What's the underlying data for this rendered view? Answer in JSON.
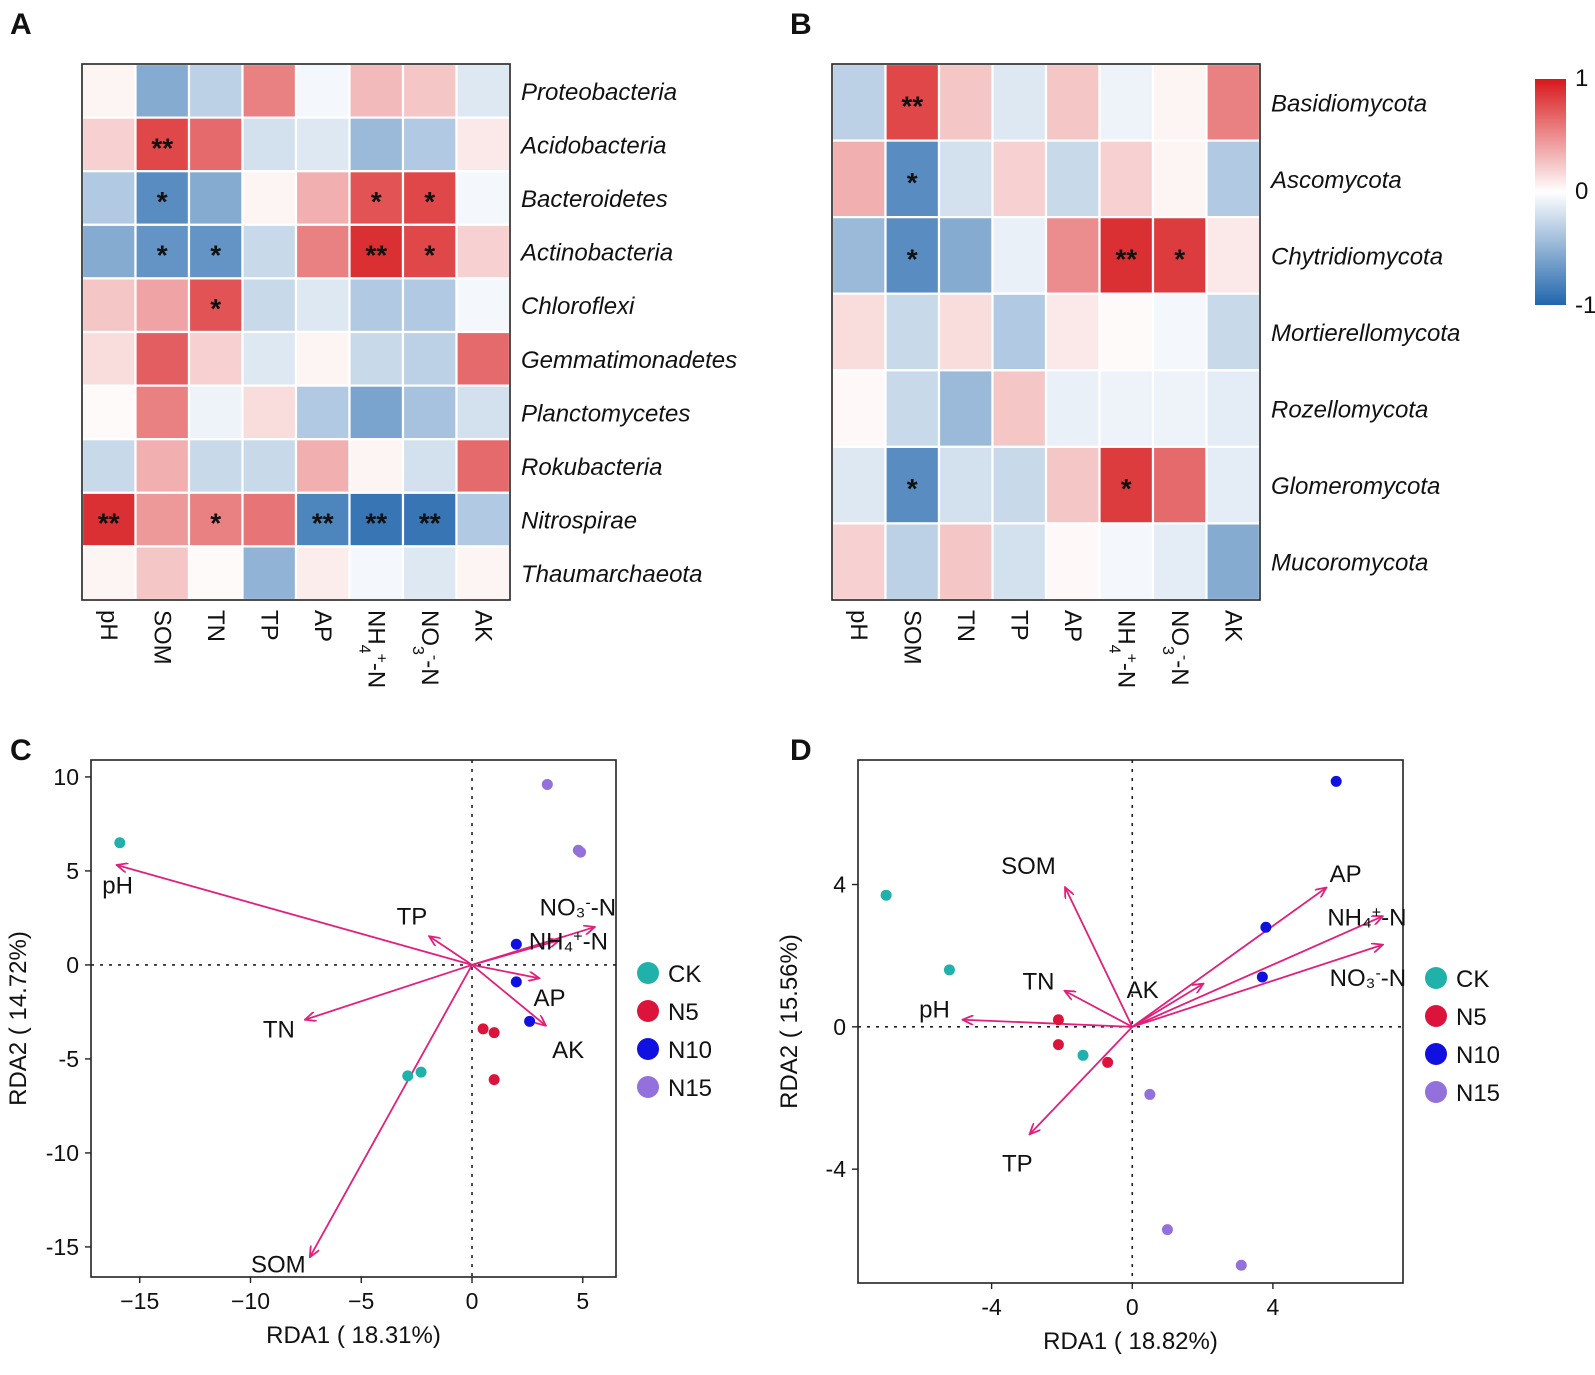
{
  "panels": [
    "A",
    "B",
    "C",
    "D"
  ],
  "colorbar": {
    "max_label": "1",
    "mid_label": "0",
    "min_label": "-1",
    "high_color": "#d7191c",
    "mid_color": "#ffffff",
    "low_color": "#2166ac"
  },
  "chart_data": [
    {
      "type": "heatmap",
      "panel": "A",
      "title": "",
      "columns": [
        "pH",
        "SOM",
        "TN",
        "TP",
        "AP",
        "NH4+-N",
        "NO3--N",
        "AK"
      ],
      "rows": [
        "Proteobacteria",
        "Acidobacteria",
        "Bacteroidetes",
        "Actinobacteria",
        "Chloroflexi",
        "Gemmatimonadetes",
        "Planctomycetes",
        "Rokubacteria",
        "Nitrospirae",
        "Thaumarchaeota"
      ],
      "values": [
        [
          0.05,
          -0.55,
          -0.3,
          0.55,
          -0.05,
          0.3,
          0.25,
          -0.15
        ],
        [
          0.2,
          0.8,
          0.65,
          -0.2,
          -0.15,
          -0.45,
          -0.35,
          0.1
        ],
        [
          -0.35,
          -0.75,
          -0.55,
          0.05,
          0.35,
          0.75,
          0.8,
          -0.05
        ],
        [
          -0.55,
          -0.7,
          -0.7,
          -0.25,
          0.55,
          0.9,
          0.8,
          0.2
        ],
        [
          0.25,
          0.4,
          0.75,
          -0.25,
          -0.15,
          -0.35,
          -0.35,
          -0.05
        ],
        [
          0.15,
          0.7,
          0.2,
          -0.15,
          0.05,
          -0.25,
          -0.3,
          0.65
        ],
        [
          0.02,
          0.55,
          -0.08,
          0.15,
          -0.35,
          -0.6,
          -0.4,
          -0.2
        ],
        [
          -0.25,
          0.35,
          -0.25,
          -0.25,
          0.35,
          0.05,
          -0.2,
          0.65
        ],
        [
          0.9,
          0.45,
          0.55,
          0.6,
          -0.8,
          -0.9,
          -0.9,
          -0.35
        ],
        [
          0.05,
          0.25,
          0.02,
          -0.5,
          0.08,
          -0.05,
          -0.15,
          0.05
        ]
      ],
      "significance": [
        [
          "",
          "",
          "",
          "",
          "",
          "",
          "",
          ""
        ],
        [
          "",
          "**",
          "",
          "",
          "",
          "",
          "",
          ""
        ],
        [
          "",
          "*",
          "",
          "",
          "",
          "*",
          "*",
          ""
        ],
        [
          "",
          "*",
          "*",
          "",
          "",
          "**",
          "*",
          ""
        ],
        [
          "",
          "",
          "*",
          "",
          "",
          "",
          "",
          ""
        ],
        [
          "",
          "",
          "",
          "",
          "",
          "",
          "",
          ""
        ],
        [
          "",
          "",
          "",
          "",
          "",
          "",
          "",
          ""
        ],
        [
          "",
          "",
          "",
          "",
          "",
          "",
          "",
          ""
        ],
        [
          "**",
          "",
          "*",
          "",
          "**",
          "**",
          "**",
          ""
        ],
        [
          "",
          "",
          "",
          "",
          "",
          "",
          "",
          ""
        ]
      ],
      "zlim": [
        -1,
        1
      ]
    },
    {
      "type": "heatmap",
      "panel": "B",
      "title": "",
      "columns": [
        "pH",
        "SOM",
        "TN",
        "TP",
        "AP",
        "NH4+-N",
        "NO3--N",
        "AK"
      ],
      "rows": [
        "Basidiomycota",
        "Ascomycota",
        "Chytridiomycota",
        "Mortierellomycota",
        "Rozellomycota",
        "Glomeromycota",
        "Mucoromycota"
      ],
      "values": [
        [
          -0.3,
          0.8,
          0.25,
          -0.15,
          0.25,
          -0.08,
          0.05,
          0.55
        ],
        [
          0.35,
          -0.75,
          -0.2,
          0.2,
          -0.25,
          0.2,
          0.05,
          -0.35
        ],
        [
          -0.45,
          -0.75,
          -0.55,
          -0.1,
          0.5,
          0.9,
          0.85,
          0.1
        ],
        [
          0.15,
          -0.25,
          0.15,
          -0.35,
          0.1,
          0.02,
          -0.05,
          -0.25
        ],
        [
          0.03,
          -0.25,
          -0.45,
          0.25,
          -0.1,
          -0.08,
          -0.08,
          -0.12
        ],
        [
          -0.15,
          -0.75,
          -0.2,
          -0.25,
          0.25,
          0.85,
          0.65,
          -0.12
        ],
        [
          0.2,
          -0.3,
          0.25,
          -0.2,
          0.03,
          -0.05,
          -0.12,
          -0.55
        ]
      ],
      "significance": [
        [
          "",
          "**",
          "",
          "",
          "",
          "",
          "",
          ""
        ],
        [
          "",
          "*",
          "",
          "",
          "",
          "",
          "",
          ""
        ],
        [
          "",
          "*",
          "",
          "",
          "",
          "**",
          "*",
          ""
        ],
        [
          "",
          "",
          "",
          "",
          "",
          "",
          "",
          ""
        ],
        [
          "",
          "",
          "",
          "",
          "",
          "",
          "",
          ""
        ],
        [
          "",
          "*",
          "",
          "",
          "",
          "*",
          "",
          ""
        ],
        [
          "",
          "",
          "",
          "",
          "",
          "",
          "",
          ""
        ]
      ],
      "zlim": [
        -1,
        1
      ]
    },
    {
      "type": "scatter",
      "panel": "C",
      "xlabel": "RDA1 ( 18.31%)",
      "ylabel": "RDA2 ( 14.72%)",
      "xlim": [
        -17.2,
        6.5
      ],
      "ylim": [
        -16.6,
        10.9
      ],
      "xticks": [
        -15,
        -10,
        -5,
        0,
        5
      ],
      "xtick_labels": [
        "−15",
        "−10",
        "−5",
        "0",
        "5"
      ],
      "yticks": [
        10,
        5,
        0,
        -5,
        -10,
        -15
      ],
      "ytick_labels": [
        "10",
        "5",
        "0",
        "-5",
        "-10",
        "-15"
      ],
      "series": [
        {
          "name": "CK",
          "color": "#20b2aa",
          "points": [
            [
              -15.9,
              6.5
            ],
            [
              -2.9,
              -5.9
            ],
            [
              -2.3,
              -5.7
            ]
          ]
        },
        {
          "name": "N5",
          "color": "#dc143c",
          "points": [
            [
              0.5,
              -3.4
            ],
            [
              1.0,
              -3.6
            ],
            [
              1.0,
              -6.1
            ]
          ]
        },
        {
          "name": "N10",
          "color": "#1010e0",
          "points": [
            [
              2.0,
              1.1
            ],
            [
              2.0,
              -0.9
            ],
            [
              2.6,
              -3.0
            ]
          ]
        },
        {
          "name": "N15",
          "color": "#9370db",
          "points": [
            [
              3.4,
              9.6
            ],
            [
              4.9,
              6.0
            ],
            [
              4.8,
              6.1
            ]
          ]
        }
      ],
      "arrows": [
        {
          "name": "pH",
          "end": [
            -16.0,
            5.3
          ]
        },
        {
          "name": "TP",
          "end": [
            -1.9,
            1.5
          ]
        },
        {
          "name": "TN",
          "end": [
            -7.5,
            -2.9
          ]
        },
        {
          "name": "SOM",
          "end": [
            -7.3,
            -15.5
          ]
        },
        {
          "name": "NO3--N",
          "end": [
            5.5,
            2.0
          ]
        },
        {
          "name": "NH4+-N",
          "end": [
            3.9,
            1.3
          ]
        },
        {
          "name": "AP",
          "end": [
            3.0,
            -0.7
          ]
        },
        {
          "name": "AK",
          "end": [
            3.3,
            -3.2
          ]
        }
      ],
      "arrow_color": "#e0207a",
      "legend": [
        "CK",
        "N5",
        "N10",
        "N15"
      ],
      "grid": false
    },
    {
      "type": "scatter",
      "panel": "D",
      "xlabel": "RDA1 ( 18.82%)",
      "ylabel": "RDA2 ( 15.56%)",
      "xlim": [
        -7.8,
        7.7
      ],
      "ylim": [
        -7.2,
        7.5
      ],
      "xticks": [
        -4,
        0,
        4
      ],
      "xtick_labels": [
        "-4",
        "0",
        "4"
      ],
      "yticks": [
        4,
        0,
        -4
      ],
      "ytick_labels": [
        "4",
        "0",
        "-4"
      ],
      "series": [
        {
          "name": "CK",
          "color": "#20b2aa",
          "points": [
            [
              -7.0,
              3.7
            ],
            [
              -5.2,
              1.6
            ],
            [
              -1.4,
              -0.8
            ]
          ]
        },
        {
          "name": "N5",
          "color": "#dc143c",
          "points": [
            [
              -2.1,
              0.2
            ],
            [
              -2.1,
              -0.5
            ],
            [
              -0.7,
              -1.0
            ]
          ]
        },
        {
          "name": "N10",
          "color": "#1010e0",
          "points": [
            [
              5.8,
              6.9
            ],
            [
              3.8,
              2.8
            ],
            [
              3.7,
              1.4
            ]
          ]
        },
        {
          "name": "N15",
          "color": "#9370db",
          "points": [
            [
              0.5,
              -1.9
            ],
            [
              1.0,
              -5.7
            ],
            [
              3.1,
              -6.7
            ]
          ]
        }
      ],
      "arrows": [
        {
          "name": "SOM",
          "end": [
            -1.9,
            3.9
          ]
        },
        {
          "name": "TN",
          "end": [
            -1.9,
            1.0
          ]
        },
        {
          "name": "pH",
          "end": [
            -4.8,
            0.2
          ]
        },
        {
          "name": "TP",
          "end": [
            -2.9,
            -3.0
          ]
        },
        {
          "name": "AP",
          "end": [
            5.5,
            3.9
          ]
        },
        {
          "name": "NH4+-N",
          "end": [
            7.1,
            3.1
          ]
        },
        {
          "name": "NO3--N",
          "end": [
            7.1,
            2.3
          ]
        },
        {
          "name": "AK",
          "end": [
            2.0,
            1.2
          ]
        }
      ],
      "arrow_color": "#e0207a",
      "legend": [
        "CK",
        "N5",
        "N10",
        "N15"
      ],
      "grid": false
    }
  ]
}
